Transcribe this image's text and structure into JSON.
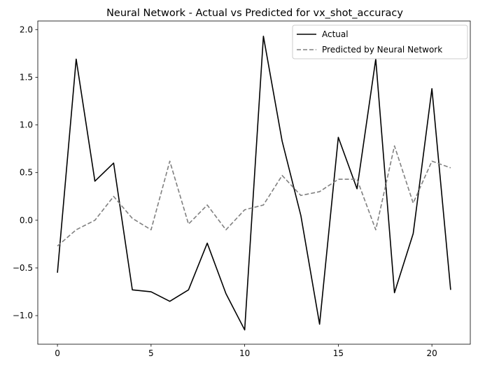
{
  "chart_data": {
    "type": "line",
    "title": "Neural Network - Actual vs Predicted for vx_shot_accuracy",
    "xlabel": "",
    "ylabel": "",
    "x": [
      0,
      1,
      2,
      3,
      4,
      5,
      6,
      7,
      8,
      9,
      10,
      11,
      12,
      13,
      14,
      15,
      16,
      17,
      18,
      19,
      20,
      21
    ],
    "xlim": [
      -1.05,
      22.05
    ],
    "ylim": [
      -1.3,
      2.09
    ],
    "xticks": [
      0,
      5,
      10,
      15,
      20
    ],
    "xtick_labels": [
      "0",
      "5",
      "10",
      "15",
      "20"
    ],
    "yticks": [
      -1.0,
      -0.5,
      0.0,
      0.5,
      1.0,
      1.5,
      2.0
    ],
    "ytick_labels": [
      "−1.0",
      "−0.5",
      "0.0",
      "0.5",
      "1.0",
      "1.5",
      "2.0"
    ],
    "grid": false,
    "legend_position": "top-right",
    "series": [
      {
        "name": "Actual",
        "color": "#000000",
        "style": "solid",
        "values": [
          -0.55,
          1.69,
          0.41,
          0.6,
          -0.73,
          -0.75,
          -0.85,
          -0.73,
          -0.24,
          -0.77,
          -1.15,
          1.93,
          0.83,
          0.05,
          -1.09,
          0.87,
          0.33,
          1.69,
          -0.76,
          -0.14,
          1.38,
          -0.73
        ]
      },
      {
        "name": "Predicted by Neural Network",
        "color": "#808080",
        "style": "dashed",
        "values": [
          -0.27,
          -0.1,
          0.0,
          0.25,
          0.02,
          -0.1,
          0.62,
          -0.04,
          0.16,
          -0.1,
          0.11,
          0.16,
          0.47,
          0.26,
          0.3,
          0.43,
          0.43,
          -0.1,
          0.78,
          0.18,
          0.62,
          0.55
        ]
      }
    ]
  }
}
